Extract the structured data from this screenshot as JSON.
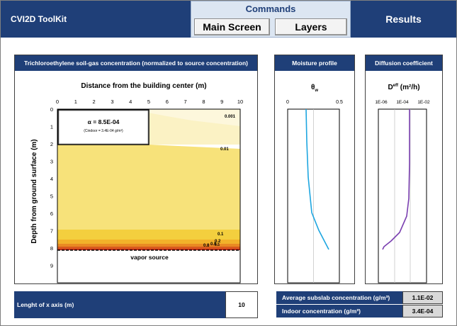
{
  "header": {
    "title": "CVI2D ToolKit",
    "commands_title": "Commands",
    "main_screen_label": "Main Screen",
    "layers_label": "Layers",
    "results_label": "Results"
  },
  "concentration_panel": {
    "title": "Trichloroethylene soil-gas concentration (normalized to source concentration)",
    "x_axis_title": "Distance from the building center (m)",
    "y_axis_title": "Depth from ground surface (m)",
    "x_ticks": [
      "0",
      "1",
      "2",
      "3",
      "4",
      "5",
      "6",
      "7",
      "8",
      "9",
      "10"
    ],
    "y_ticks": [
      "0",
      "1",
      "2",
      "3",
      "4",
      "5",
      "6",
      "7",
      "8",
      "9"
    ],
    "alpha_text": "α = 8.5E-04",
    "cindoor_text": "(Cindoor = 3.4E-04 g/m³)",
    "contour_labels": [
      "0.001",
      "0.01",
      "0.1",
      "0.2",
      "0.8",
      "0.9",
      "0.5"
    ],
    "source_label": "vapor source",
    "colors": {
      "band1": "#fbf2c4",
      "band2": "#f7e27a",
      "band3": "#f3d24e",
      "band4": "#f2b62d",
      "band5": "#e98a23",
      "band6": "#c8301a"
    }
  },
  "moisture_panel": {
    "title": "Moisture profile",
    "axis_title_base": "θ",
    "axis_title_sub": "w",
    "x_ticks": [
      "0",
      "0.5"
    ],
    "line_color": "#1ea6e0"
  },
  "diffusion_panel": {
    "title": "Diffusion coefficient",
    "axis_title_base": "D",
    "axis_title_sup": "eff",
    "axis_title_units": " (m²/h)",
    "x_ticks": [
      "1E-06",
      "1E-04",
      "1E-02"
    ],
    "line_color": "#7a3fb0"
  },
  "x_axis_length": {
    "label": "Lenght of x axis (m)",
    "value": "10"
  },
  "results": {
    "subslab_label": "Average subslab concentration (g/m³)",
    "subslab_value": "1.1E-02",
    "indoor_label": "Indoor concentration (g/m³)",
    "indoor_value": "3.4E-04"
  }
}
